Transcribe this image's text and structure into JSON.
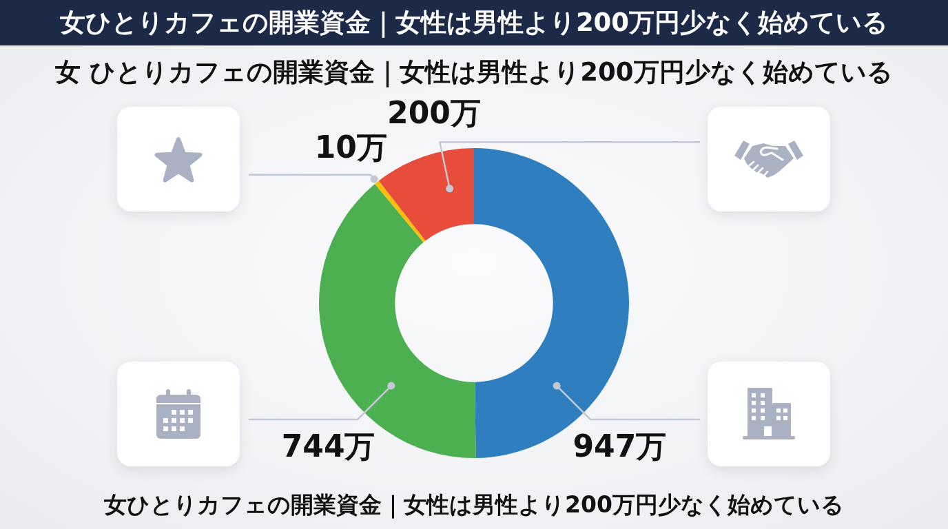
{
  "chart_data": {
    "type": "donut",
    "title": "女ひとりカフェの開業資金｜女性は男性より200万円少なく始めている",
    "subtitle": "女 ひとりカフェの開業資金｜女性は男性より200万円少なく始めている",
    "annotations": [
      "女ひとりカフェの開業資金｜女性は男性より200万円少なく始めている"
    ],
    "categories": [
      null,
      null,
      null,
      null
    ],
    "values": [
      947,
      744,
      10,
      200
    ],
    "colors": [
      "#2f7ebf",
      "#4caf50",
      "#fbbf0a",
      "#e84c3a"
    ],
    "value_labels": [
      "947万",
      "744万",
      "10万",
      "200万"
    ]
  }
}
